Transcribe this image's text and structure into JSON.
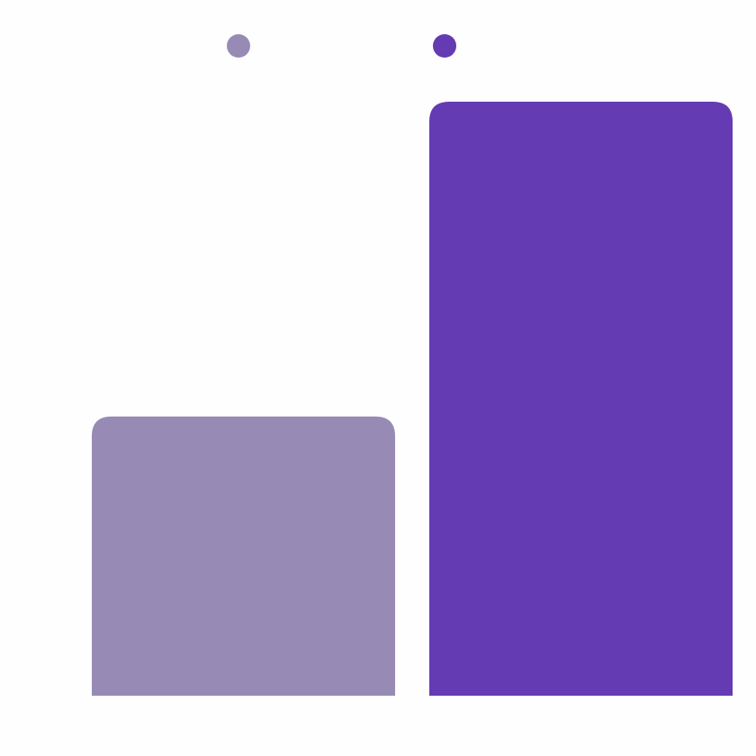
{
  "chart_data": {
    "type": "bar",
    "series": [
      {
        "color": "#978bb6",
        "values": [
          47
        ]
      },
      {
        "color": "#643bb3",
        "values": [
          100
        ]
      }
    ]
  }
}
